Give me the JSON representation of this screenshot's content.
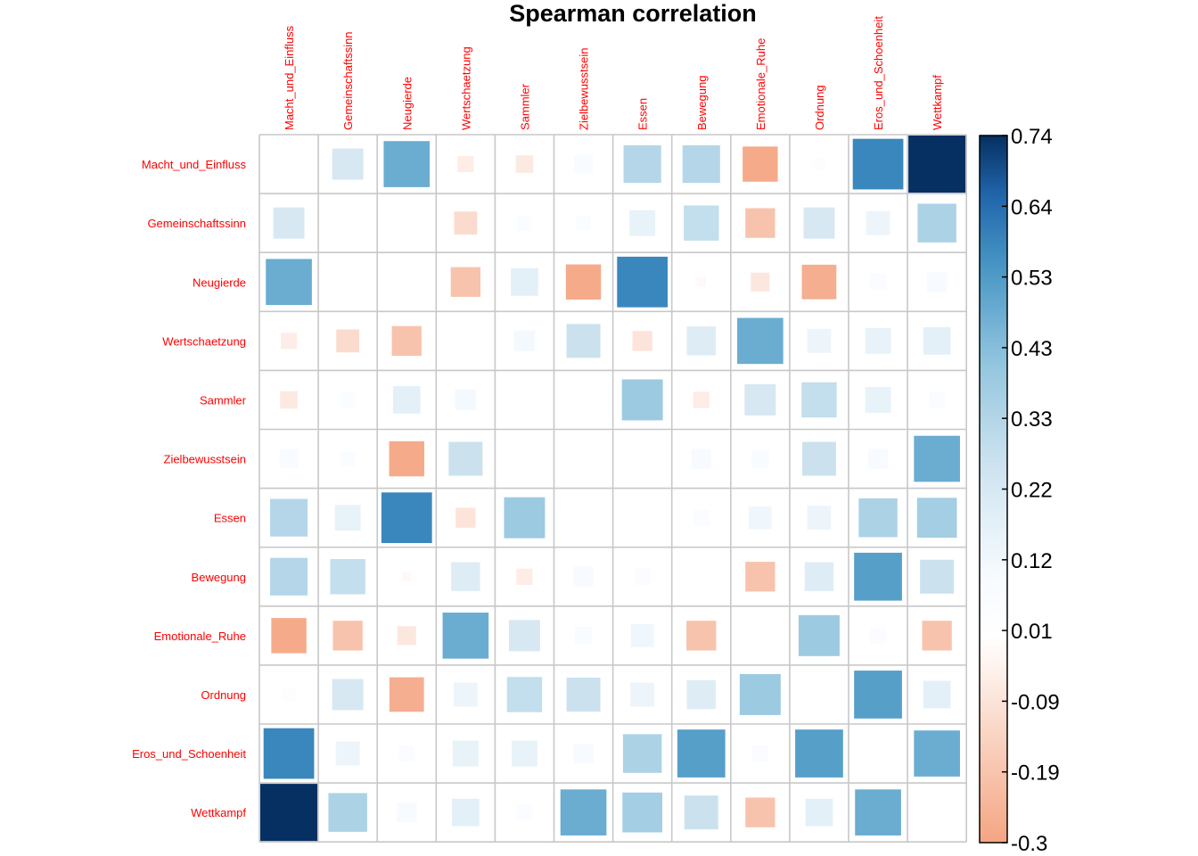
{
  "chart_data": {
    "type": "heatmap",
    "title": "Spearman correlation",
    "method": "square",
    "variables": [
      "Macht_und_Einfluss",
      "Gemeinschaftssinn",
      "Neugierde",
      "Wertschaetzung",
      "Sammler",
      "Zielbewusstsein",
      "Essen",
      "Bewegung",
      "Emotionale_Ruhe",
      "Ordnung",
      "Eros_und_Schoenheit",
      "Wettkampf"
    ],
    "matrix": [
      [
        null,
        0.22,
        0.48,
        -0.06,
        -0.07,
        0.08,
        0.32,
        0.32,
        -0.28,
        0.04,
        0.58,
        0.74
      ],
      [
        0.22,
        null,
        0.0,
        -0.12,
        0.05,
        0.05,
        0.15,
        0.28,
        -0.2,
        0.22,
        0.13,
        0.34
      ],
      [
        0.48,
        0.0,
        null,
        -0.2,
        0.17,
        -0.28,
        0.58,
        -0.02,
        -0.08,
        -0.27,
        0.06,
        0.09
      ],
      [
        -0.06,
        -0.12,
        -0.2,
        null,
        0.1,
        0.26,
        -0.09,
        0.19,
        0.48,
        0.13,
        0.15,
        0.17
      ],
      [
        -0.07,
        0.05,
        0.17,
        0.1,
        null,
        0.0,
        0.38,
        -0.06,
        0.22,
        0.28,
        0.15,
        0.06
      ],
      [
        0.08,
        0.05,
        -0.28,
        0.26,
        0.0,
        null,
        0.01,
        0.09,
        0.07,
        0.26,
        0.09,
        0.48
      ],
      [
        0.32,
        0.15,
        0.58,
        -0.09,
        0.38,
        0.01,
        null,
        0.06,
        0.12,
        0.13,
        0.34,
        0.36
      ],
      [
        0.32,
        0.28,
        -0.02,
        0.19,
        -0.06,
        0.09,
        0.06,
        null,
        -0.2,
        0.19,
        0.52,
        0.26
      ],
      [
        -0.28,
        -0.2,
        -0.08,
        0.48,
        0.22,
        0.07,
        0.12,
        -0.2,
        null,
        0.38,
        0.06,
        -0.2
      ],
      [
        0.04,
        0.22,
        -0.27,
        0.13,
        0.28,
        0.26,
        0.13,
        0.19,
        0.38,
        null,
        0.52,
        0.17
      ],
      [
        0.58,
        0.13,
        0.06,
        0.15,
        0.15,
        0.09,
        0.34,
        0.52,
        0.06,
        0.52,
        null,
        0.48
      ],
      [
        0.74,
        0.34,
        0.09,
        0.17,
        0.06,
        0.48,
        0.36,
        0.26,
        -0.2,
        0.17,
        0.48,
        null
      ]
    ],
    "scale": {
      "min": -0.3,
      "max": 0.74,
      "ticks": [
        "0.74",
        "0.64",
        "0.53",
        "0.43",
        "0.33",
        "0.22",
        "0.12",
        "0.01",
        "-0.09",
        "-0.19",
        "-0.3"
      ]
    },
    "colors": {
      "negative_end": "#f4a582",
      "positive_end": "#053061",
      "label": "#ff0000",
      "grid": "#c8c8c8"
    }
  }
}
